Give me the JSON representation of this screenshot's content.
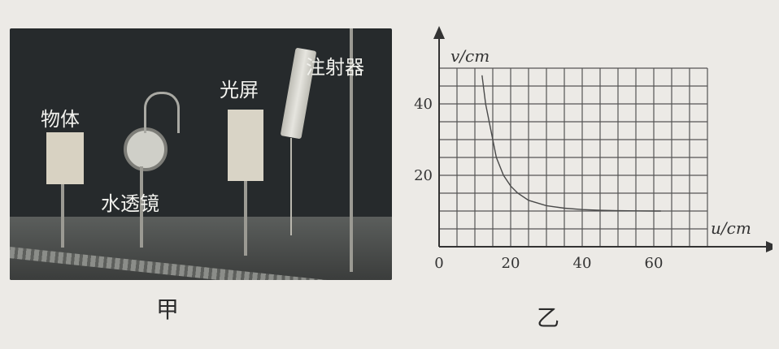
{
  "photo": {
    "label_object": "物体",
    "label_lens": "水透镜",
    "label_screen": "光屏",
    "label_syringe": "注射器",
    "caption": "甲"
  },
  "chart_caption": "乙",
  "chart_data": {
    "type": "line",
    "xlabel": "u/cm",
    "ylabel": "v/cm",
    "x_ticks": [
      0,
      20,
      40,
      60
    ],
    "y_ticks": [
      20,
      40
    ],
    "xlim": [
      0,
      75
    ],
    "ylim": [
      0,
      50
    ],
    "grid": true,
    "series": [
      {
        "x": [
          12,
          13,
          14,
          15,
          16,
          18,
          20,
          22,
          25,
          30,
          35,
          40,
          45,
          50,
          55,
          60,
          62
        ],
        "y": [
          48,
          40,
          35,
          30,
          25,
          20,
          17,
          15,
          13,
          11.5,
          10.8,
          10.4,
          10.2,
          10.1,
          10.05,
          10,
          10
        ]
      }
    ]
  }
}
